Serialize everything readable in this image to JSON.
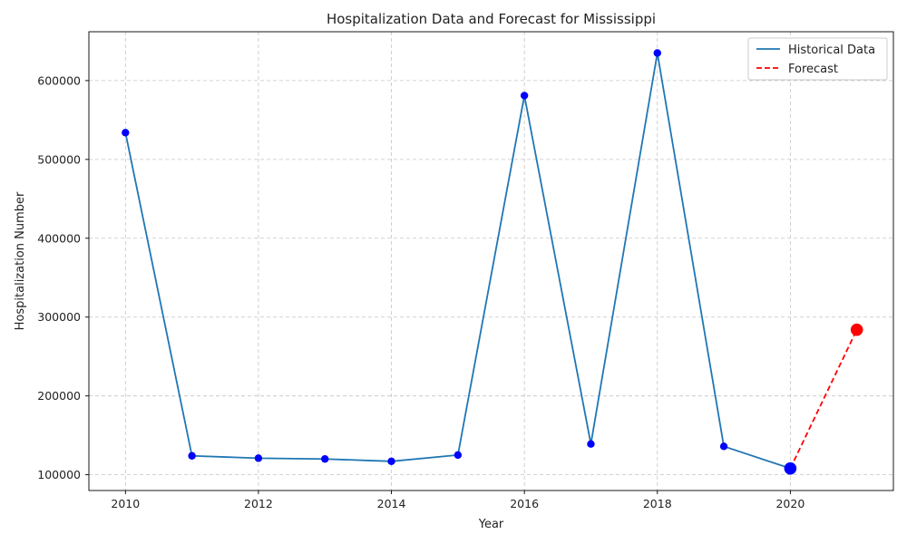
{
  "chart_data": {
    "type": "line",
    "title": "Hospitalization Data and Forecast for Mississippi",
    "xlabel": "Year",
    "ylabel": "Hospitalization Number",
    "xlim": [
      2009.45,
      2021.55
    ],
    "ylim": [
      80000,
      662000
    ],
    "xticks": [
      2010,
      2012,
      2014,
      2016,
      2018,
      2020
    ],
    "yticks": [
      100000,
      200000,
      300000,
      400000,
      500000,
      600000
    ],
    "grid": true,
    "legend_position": "top-right",
    "series": [
      {
        "name": "Historical Data",
        "style": "solid",
        "color": "#1f77b4",
        "marker_color": "#0000ff",
        "x": [
          2010,
          2011,
          2012,
          2013,
          2014,
          2015,
          2016,
          2017,
          2018,
          2019,
          2020
        ],
        "y": [
          534000,
          124000,
          121000,
          120000,
          117000,
          125000,
          581000,
          139000,
          635000,
          136000,
          108000
        ]
      },
      {
        "name": "Forecast",
        "style": "dashed",
        "color": "#ff0000",
        "x": [
          2020,
          2021
        ],
        "y": [
          108000,
          284000
        ]
      }
    ],
    "highlight_points": [
      {
        "x": 2020,
        "y": 108000,
        "color": "#0000ff"
      },
      {
        "x": 2021,
        "y": 284000,
        "color": "#ff0000"
      }
    ]
  }
}
